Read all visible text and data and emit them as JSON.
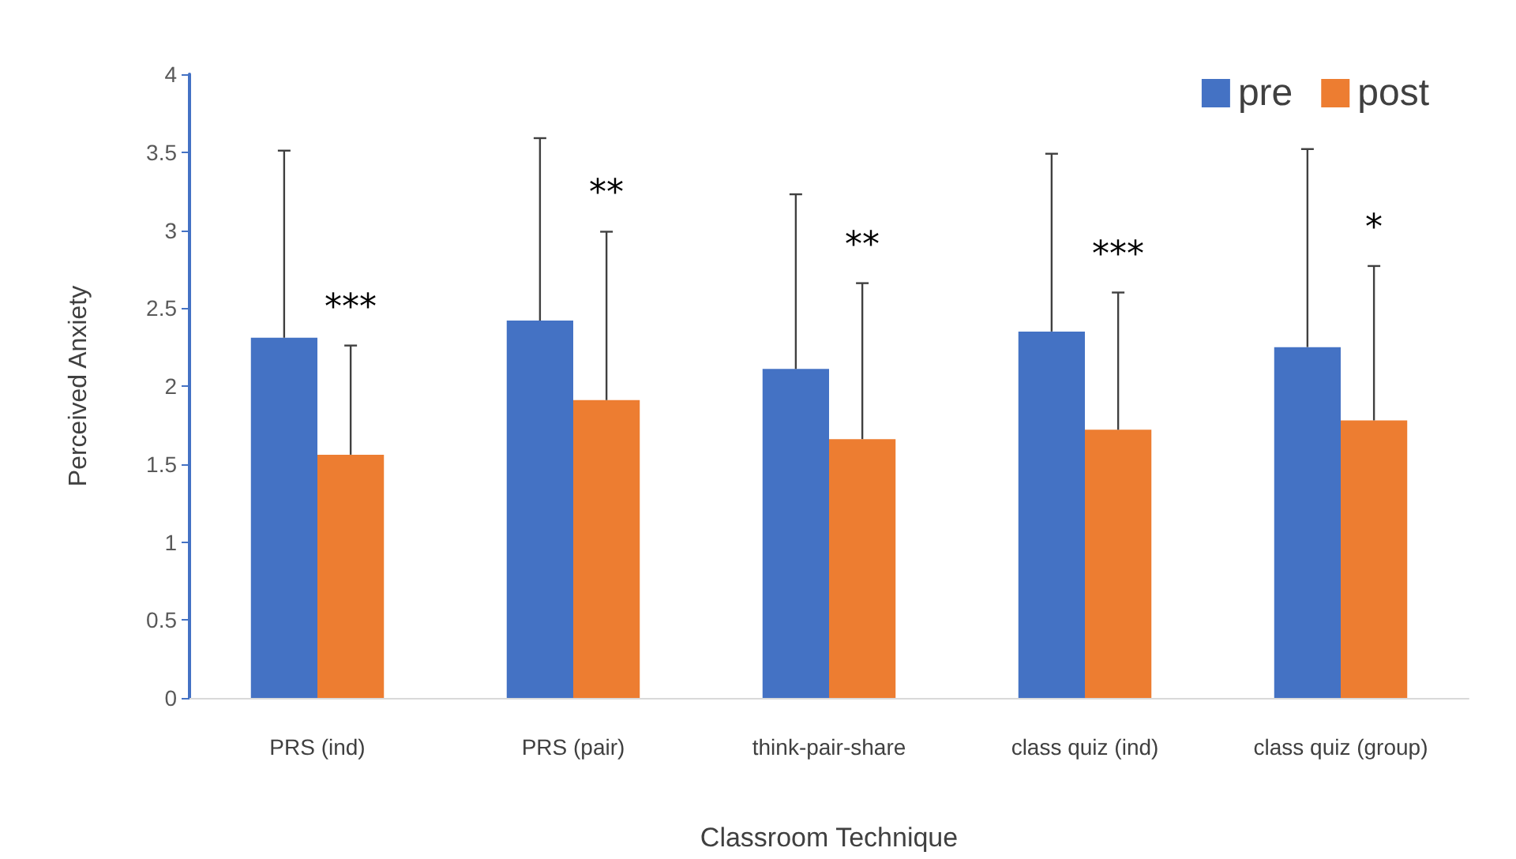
{
  "chart_data": {
    "type": "bar",
    "xlabel": "Classroom Technique",
    "ylabel": "Perceived Anxiety",
    "categories": [
      "PRS (ind)",
      "PRS (pair)",
      "think-pair-share",
      "class quiz (ind)",
      "class quiz (group)"
    ],
    "series": [
      {
        "name": "pre",
        "color": "#4472c4",
        "values": [
          2.31,
          2.42,
          2.11,
          2.35,
          2.25
        ],
        "errors": [
          [
            2.31,
            3.51
          ],
          [
            2.42,
            3.59
          ],
          [
            2.11,
            3.23
          ],
          [
            2.35,
            3.49
          ],
          [
            2.25,
            3.52
          ]
        ]
      },
      {
        "name": "post",
        "color": "#ed7d31",
        "values": [
          1.56,
          1.91,
          1.66,
          1.72,
          1.78
        ],
        "errors": [
          [
            1.56,
            2.26
          ],
          [
            1.91,
            2.99
          ],
          [
            1.66,
            2.66
          ],
          [
            1.72,
            2.6
          ],
          [
            1.78,
            2.77
          ]
        ]
      }
    ],
    "ylim": [
      0,
      4
    ],
    "yticks": [
      0,
      0.5,
      1,
      1.5,
      2,
      2.5,
      3,
      3.5,
      4
    ],
    "grid": false,
    "legend": "top right",
    "annotations": [
      "***",
      "**",
      "**",
      "***",
      "*"
    ]
  }
}
